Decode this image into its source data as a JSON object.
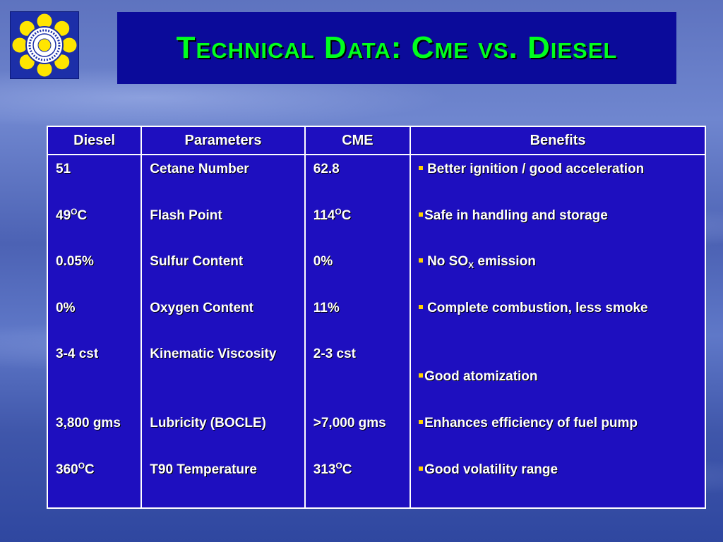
{
  "title": "Technical Data: Cme vs. Diesel",
  "colors": {
    "title_text": "#00ff1f",
    "title_box": "#0b0b9a",
    "table_fill": "#1e0fbf",
    "bullet": "#ffd400"
  },
  "table": {
    "headers": {
      "diesel": "Diesel",
      "parameters": "Parameters",
      "cme": "CME",
      "benefits": "Benefits"
    },
    "diesel": {
      "r1": "51",
      "r2_val": "49",
      "r2_sup": "O",
      "r2_unit": "C",
      "r3": "0.05%",
      "r4": "0%",
      "r5": "3-4 cst",
      "r6": "3,800 gms",
      "r7_val": "360",
      "r7_sup": "O",
      "r7_unit": "C"
    },
    "parameters": {
      "r1": "Cetane Number",
      "r2": "Flash Point",
      "r3": "Sulfur Content",
      "r4": "Oxygen Content",
      "r5": "Kinematic Viscosity",
      "r6": "Lubricity (BOCLE)",
      "r7": "T90 Temperature"
    },
    "cme": {
      "r1": "62.8",
      "r2_val": "114",
      "r2_sup": "O",
      "r2_unit": "C",
      "r3": "0%",
      "r4": "11%",
      "r5": "2-3 cst",
      "r6": ">7,000 gms",
      "r7_val": "313",
      "r7_sup": "O",
      "r7_unit": "C"
    },
    "benefits": {
      "r1": "Better ignition / good acceleration",
      "r2": "Safe in handling and storage",
      "r3_pre": "No SO",
      "r3_sub": "X",
      "r3_post": " emission",
      "r4": "Complete combustion, less smoke",
      "r5": "Good atomization",
      "r6": "Enhances efficiency of fuel pump",
      "r7": "Good volatility range"
    }
  }
}
